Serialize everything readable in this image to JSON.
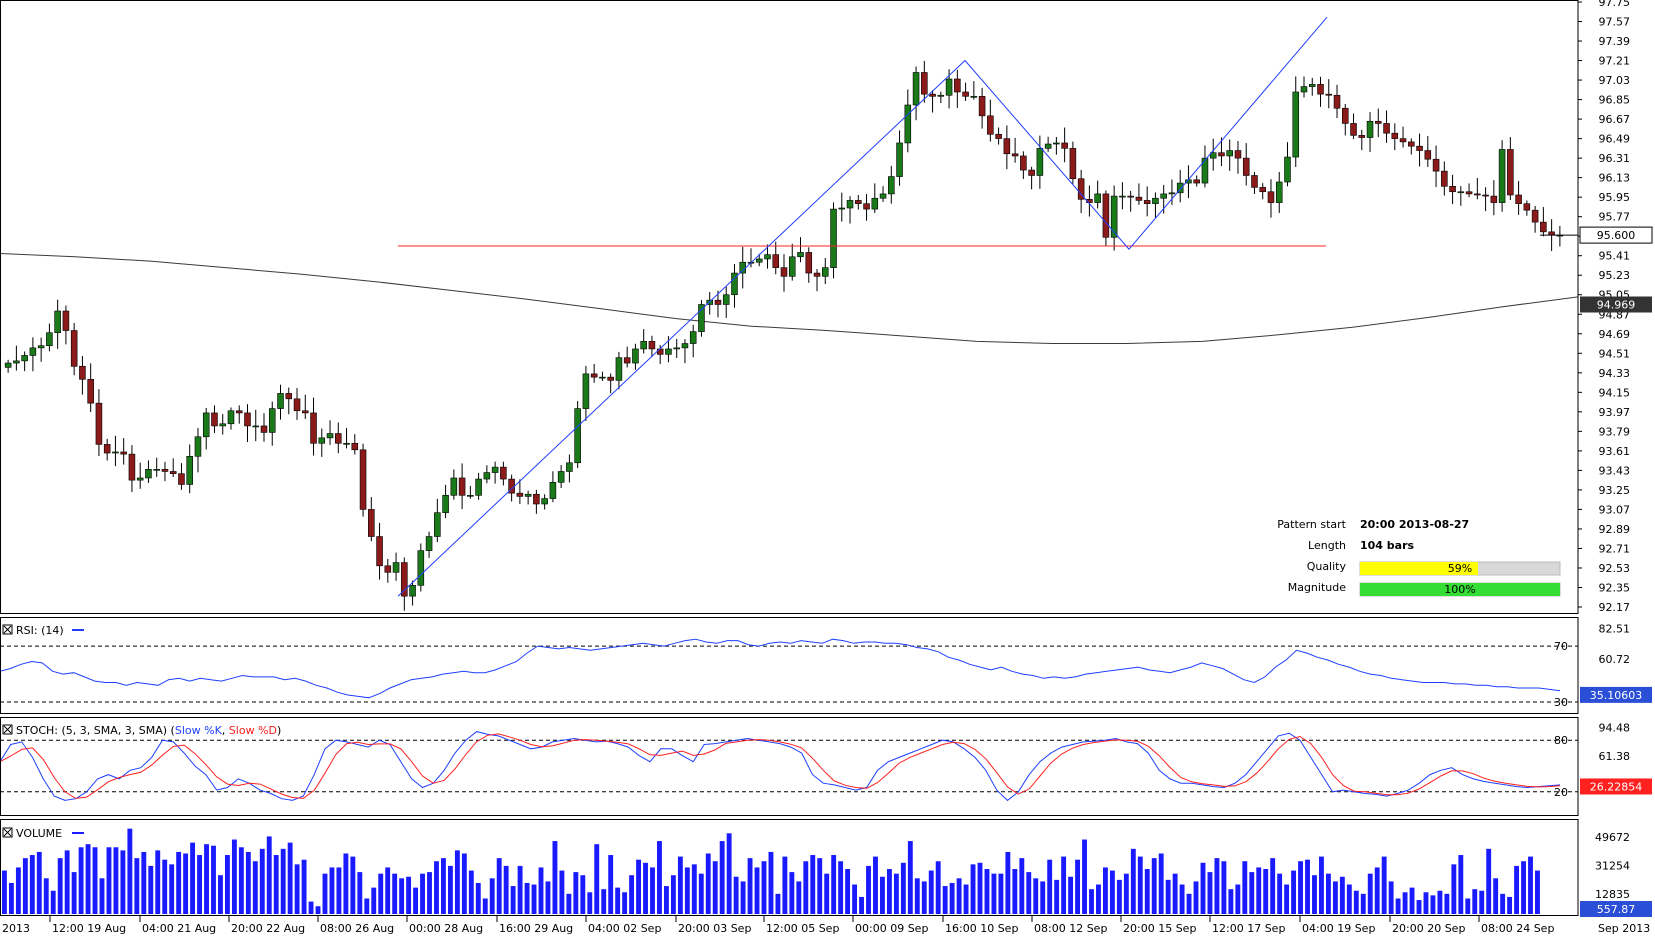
{
  "colors": {
    "bull": "#1a7a1a",
    "bear": "#8b1a1a",
    "pattern_line": "#1f3fff",
    "level_line": "#ff2020",
    "ma_line": "#3a3a3a",
    "rsi_line": "#1f3fff",
    "stoch_k": "#1f3fff",
    "stoch_d": "#ff2020",
    "volume": "#1a1aff",
    "quality_fill": "#ffff00",
    "magnitude_fill": "#33dd33",
    "tag_bg": "#2a4fd6",
    "ma_tag_bg": "#333333"
  },
  "time_labels": [
    "2013",
    "12:00 19 Aug",
    "04:00 21 Aug",
    "20:00 22 Aug",
    "08:00 26 Aug",
    "00:00 28 Aug",
    "16:00 29 Aug",
    "04:00 02 Sep",
    "20:00 03 Sep",
    "12:00 05 Sep",
    "00:00 09 Sep",
    "16:00 10 Sep",
    "08:00 12 Sep",
    "20:00 15 Sep",
    "12:00 17 Sep",
    "04:00 19 Sep",
    "20:00 20 Sep",
    "08:00 24 Sep",
    "Sep 2013"
  ],
  "pattern_info": {
    "start_label": "Pattern start",
    "start_value": "20:00 2013-08-27",
    "length_label": "Length",
    "length_value": "104 bars",
    "quality_label": "Quality",
    "quality_value": "59%",
    "quality_pct": 0.59,
    "magnitude_label": "Magnitude",
    "magnitude_value": "100%",
    "magnitude_pct": 1.0
  },
  "chart_data": [
    {
      "type": "candlestick",
      "panel": "price",
      "y_ticks": [
        "97.75",
        "97.57",
        "97.39",
        "97.21",
        "97.03",
        "96.85",
        "96.67",
        "96.49",
        "96.31",
        "96.13",
        "95.95",
        "95.77",
        "95.59",
        "95.41",
        "95.23",
        "95.05",
        "94.87",
        "94.69",
        "94.51",
        "94.33",
        "94.15",
        "93.97",
        "93.79",
        "93.61",
        "93.43",
        "93.25",
        "93.07",
        "92.89",
        "92.71",
        "92.53",
        "92.35",
        "92.17"
      ],
      "ylim": [
        92.1,
        97.8
      ],
      "current_price": "95.600",
      "ma_value": "94.969",
      "level": 95.5,
      "close_path": [
        94.42,
        94.44,
        94.49,
        94.56,
        94.58,
        94.7,
        94.9,
        94.72,
        94.39,
        94.27,
        94.05,
        93.67,
        93.59,
        93.6,
        93.58,
        93.34,
        93.36,
        93.44,
        93.44,
        93.42,
        93.4,
        93.3,
        93.56,
        93.74,
        93.96,
        93.84,
        93.86,
        93.98,
        93.96,
        93.84,
        93.84,
        93.78,
        94.0,
        94.14,
        94.09,
        93.98,
        93.96,
        93.68,
        93.73,
        93.77,
        93.68,
        93.68,
        93.62,
        93.07,
        92.82,
        92.55,
        92.49,
        92.58,
        92.27,
        92.37,
        92.69,
        92.82,
        93.04,
        93.2,
        93.36,
        93.2,
        93.2,
        93.35,
        93.41,
        93.46,
        93.35,
        93.22,
        93.19,
        93.21,
        93.12,
        93.17,
        93.32,
        93.42,
        93.5,
        94.0,
        94.32,
        94.29,
        94.29,
        94.26,
        94.47,
        94.42,
        94.55,
        94.62,
        94.55,
        94.5,
        94.55,
        94.56,
        94.6,
        94.71,
        94.96,
        95.0,
        94.96,
        95.05,
        95.25,
        95.35,
        95.35,
        95.38,
        95.42,
        95.3,
        95.22,
        95.4,
        95.44,
        95.25,
        95.22,
        95.3,
        95.84,
        95.85,
        95.92,
        95.89,
        95.84,
        95.94,
        95.98,
        96.14,
        96.45,
        96.8,
        97.1,
        96.9,
        96.88,
        96.89,
        97.04,
        96.92,
        96.88,
        96.88,
        96.7,
        96.53,
        96.49,
        96.35,
        96.33,
        96.2,
        96.15,
        96.4,
        96.44,
        96.45,
        96.4,
        96.12,
        95.93,
        95.9,
        95.98,
        95.58,
        95.96,
        95.96,
        95.95,
        95.92,
        95.89,
        95.94,
        95.98,
        95.99,
        96.08,
        96.11,
        96.08,
        96.31,
        96.36,
        96.33,
        96.38,
        96.31,
        96.15,
        96.04,
        96.0,
        95.9,
        96.09,
        96.32,
        96.92,
        96.97,
        96.99,
        96.9,
        96.89,
        96.77,
        96.63,
        96.52,
        96.5,
        96.65,
        96.63,
        96.54,
        96.49,
        96.46,
        96.42,
        96.38,
        96.3,
        96.19,
        96.05,
        96.0,
        96.0,
        95.98,
        95.97,
        95.96,
        95.9,
        96.39,
        95.97,
        95.89,
        95.83,
        95.72,
        95.63,
        95.6,
        95.6
      ],
      "ma_path": [
        95.43,
        95.4,
        95.36,
        95.3,
        95.24,
        95.17,
        95.09,
        95.01,
        94.92,
        94.83,
        94.76,
        94.72,
        94.67,
        94.62,
        94.6,
        94.6,
        94.62,
        94.68,
        94.75,
        94.84,
        94.94,
        95.03
      ],
      "pattern_line_points": [
        [
          92.27,
          0
        ],
        [
          97.21,
          1
        ],
        [
          95.47,
          2
        ],
        [
          97.61,
          3
        ]
      ]
    },
    {
      "type": "line",
      "panel": "RSI",
      "label": "RSI: (14)",
      "y_ticks": [
        "82.51",
        "60.72"
      ],
      "levels": [
        "70",
        "30"
      ],
      "current": "35.10603",
      "values": [
        52,
        54,
        57,
        59,
        58,
        52,
        50,
        51,
        48,
        45,
        44,
        44,
        42,
        44,
        43,
        42,
        46,
        47,
        45,
        47,
        46,
        45,
        47,
        49,
        48,
        48,
        48,
        46,
        47,
        45,
        42,
        40,
        37,
        35,
        34,
        33,
        36,
        40,
        43,
        46,
        47,
        48,
        50,
        51,
        52,
        51,
        51,
        53,
        56,
        59,
        65,
        70,
        69,
        68,
        69,
        68,
        67,
        68,
        69,
        70,
        71,
        72,
        71,
        70,
        72,
        74,
        75,
        73,
        72,
        74,
        74,
        71,
        70,
        72,
        73,
        72,
        74,
        73,
        72,
        75,
        74,
        72,
        73,
        73,
        72,
        72,
        71,
        69,
        68,
        66,
        62,
        60,
        57,
        55,
        53,
        55,
        52,
        50,
        49,
        47,
        48,
        47,
        48,
        50,
        51,
        52,
        53,
        54,
        55,
        53,
        52,
        51,
        53,
        55,
        58,
        56,
        54,
        50,
        46,
        44,
        48,
        55,
        60,
        67,
        65,
        62,
        60,
        57,
        55,
        52,
        50,
        49,
        47,
        46,
        45,
        44,
        44,
        44,
        43,
        43,
        42,
        42,
        41,
        41,
        40,
        40,
        40,
        39,
        38
      ]
    },
    {
      "type": "line",
      "panel": "STOCH",
      "label_prefix": "STOCH: (5, 3, SMA, 3, SMA) (",
      "label_k": "Slow %K",
      "label_sep": ", ",
      "label_d": "Slow %D",
      "label_suffix": ")",
      "y_ticks": [
        "94.48",
        "61.38"
      ],
      "levels": [
        "80",
        "20"
      ],
      "current": "26.22854",
      "k_values": [
        55,
        75,
        78,
        60,
        35,
        15,
        10,
        12,
        20,
        35,
        40,
        35,
        45,
        48,
        60,
        80,
        78,
        65,
        50,
        40,
        22,
        25,
        35,
        30,
        22,
        18,
        12,
        10,
        15,
        40,
        70,
        80,
        78,
        75,
        72,
        80,
        75,
        55,
        35,
        25,
        30,
        45,
        65,
        80,
        90,
        87,
        85,
        80,
        75,
        70,
        72,
        78,
        80,
        82,
        80,
        78,
        79,
        76,
        72,
        62,
        55,
        70,
        70,
        62,
        55,
        75,
        76,
        78,
        80,
        82,
        80,
        78,
        76,
        72,
        65,
        40,
        30,
        28,
        25,
        22,
        25,
        45,
        55,
        60,
        65,
        70,
        75,
        80,
        78,
        70,
        60,
        45,
        22,
        10,
        20,
        40,
        55,
        65,
        72,
        75,
        78,
        79,
        80,
        82,
        78,
        76,
        65,
        45,
        35,
        30,
        30,
        28,
        26,
        25,
        30,
        40,
        55,
        70,
        85,
        88,
        80,
        60,
        40,
        20,
        22,
        20,
        18,
        17,
        15,
        18,
        22,
        30,
        40,
        45,
        48,
        40,
        35,
        32,
        30,
        28,
        26,
        25,
        26,
        27,
        28
      ]
    },
    {
      "type": "bar",
      "panel": "VOLUME",
      "label": "VOLUME",
      "y_ticks": [
        "49672",
        "31254",
        "12835"
      ],
      "current": "557.87",
      "ylim": [
        0,
        58000
      ],
      "values": [
        28000,
        20000,
        30000,
        36000,
        38000,
        40000,
        23000,
        15000,
        36000,
        41000,
        27000,
        43000,
        45000,
        43000,
        23000,
        43000,
        43000,
        41000,
        55000,
        36000,
        40000,
        31000,
        41000,
        35000,
        32000,
        40000,
        39000,
        46000,
        38000,
        45000,
        44000,
        25000,
        38000,
        48000,
        43000,
        40000,
        34000,
        42000,
        50000,
        38000,
        42000,
        46000,
        32000,
        35000,
        8000,
        5000,
        26000,
        30000,
        30000,
        39000,
        37000,
        27000,
        10000,
        17000,
        26000,
        30000,
        26000,
        23000,
        24000,
        17000,
        26000,
        27000,
        34000,
        36000,
        31000,
        41000,
        39000,
        28000,
        20000,
        10000,
        23000,
        36000,
        31000,
        18000,
        31000,
        20000,
        19000,
        30000,
        21000,
        47000,
        28000,
        13000,
        27000,
        25000,
        14000,
        45000,
        16000,
        38000,
        17000,
        14000,
        25000,
        35000,
        33000,
        30000,
        47000,
        18000,
        25000,
        37000,
        30000,
        32000,
        26000,
        39000,
        34000,
        47000,
        52000,
        24000,
        21000,
        36000,
        30000,
        34000,
        40000,
        13000,
        37000,
        27000,
        21000,
        34000,
        38000,
        36000,
        26000,
        38000,
        34000,
        29000,
        19000,
        11000,
        31000,
        37000,
        24000,
        29000,
        26000,
        33000,
        47000,
        23000,
        21000,
        28000,
        34000,
        18000,
        20000,
        23000,
        19000,
        32000,
        33000,
        29000,
        26000,
        26000,
        40000,
        29000,
        36000,
        27000,
        23000,
        21000,
        35000,
        22000,
        37000,
        24000,
        35000,
        48000,
        16000,
        19000,
        30000,
        28000,
        22000,
        26000,
        42000,
        37000,
        29000,
        36000,
        39000,
        22000,
        26000,
        19000,
        13000,
        21000,
        33000,
        27000,
        36000,
        34000,
        16000,
        19000,
        34000,
        27000,
        30000,
        29000,
        36000,
        26000,
        19000,
        28000,
        34000,
        35000,
        25000,
        37000,
        26000,
        21000,
        24000,
        19000,
        15000,
        13000,
        26000,
        30000,
        37000,
        21000,
        10000,
        14000,
        17000,
        9000,
        14000,
        12000,
        15000,
        13000,
        32000,
        38000,
        10000,
        16000,
        15000,
        42000,
        23000,
        13000,
        11000,
        31000,
        34000,
        37000,
        28000
      ]
    }
  ]
}
